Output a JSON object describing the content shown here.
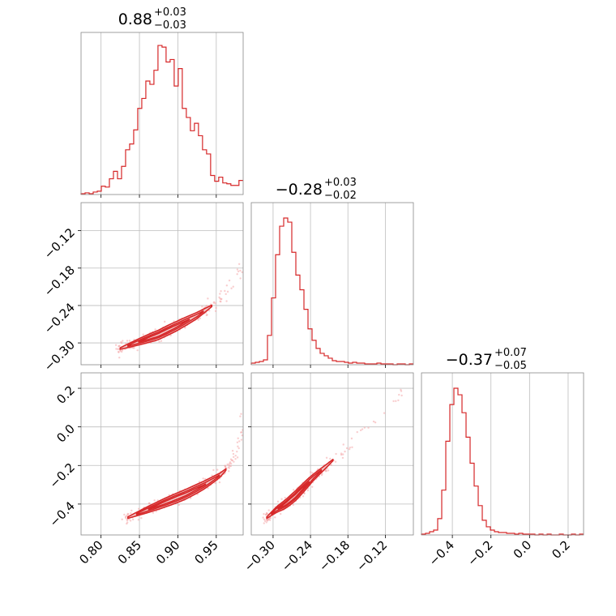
{
  "colors": {
    "accent": "#d62728",
    "contour_fill": "#f2c7c8",
    "scatter": "#f4a6a8",
    "grid": "#bdbdbd",
    "frame": "#888888"
  },
  "chart_data": {
    "type": "corner",
    "grid": true,
    "params": [
      {
        "median": "0.88",
        "plus": "+0.03",
        "minus": "−0.03",
        "range": [
          0.774,
          0.985
        ],
        "ticks": [
          0.8,
          0.85,
          0.9,
          0.95
        ],
        "tick_labels": [
          "0.80",
          "0.85",
          "0.90",
          "0.95"
        ]
      },
      {
        "median": "−0.28",
        "plus": "+0.03",
        "minus": "−0.02",
        "range": [
          -0.335,
          -0.075
        ],
        "ticks": [
          -0.3,
          -0.24,
          -0.18,
          -0.12
        ],
        "tick_labels": [
          "−0.30",
          "−0.24",
          "−0.18",
          "−0.12"
        ]
      },
      {
        "median": "−0.37",
        "plus": "+0.07",
        "minus": "−0.05",
        "range": [
          -0.56,
          0.28
        ],
        "ticks": [
          -0.4,
          -0.2,
          0.0,
          0.2
        ],
        "tick_labels": [
          "−0.4",
          "−0.2",
          "0.0",
          "0.2"
        ]
      }
    ],
    "histograms": [
      {
        "param": 0,
        "bin_start": 0.774,
        "bin_width": 0.00527,
        "ymax": 182,
        "counts": [
          1,
          2,
          1,
          3,
          4,
          10,
          9,
          19,
          28,
          19,
          34,
          54,
          61,
          78,
          104,
          116,
          137,
          133,
          150,
          180,
          178,
          160,
          163,
          131,
          152,
          104,
          93,
          77,
          86,
          71,
          54,
          49,
          23,
          16,
          21,
          14,
          13,
          11,
          11,
          17
        ]
      },
      {
        "param": 1,
        "bin_start": -0.335,
        "bin_width": 0.0065,
        "ymax": 185,
        "counts": [
          2,
          3,
          4,
          6,
          36,
          82,
          135,
          170,
          180,
          175,
          138,
          110,
          92,
          68,
          44,
          30,
          20,
          14,
          11,
          8,
          5,
          4,
          4,
          3,
          2,
          3,
          2,
          2,
          1,
          1,
          1,
          2,
          1,
          1,
          1,
          0,
          1,
          1,
          0,
          1
        ]
      },
      {
        "param": 2,
        "bin_start": -0.56,
        "bin_width": 0.021,
        "ymax": 185,
        "counts": [
          1,
          2,
          4,
          6,
          20,
          55,
          115,
          160,
          180,
          172,
          150,
          120,
          88,
          60,
          36,
          18,
          10,
          6,
          4,
          3,
          3,
          2,
          2,
          1,
          2,
          1,
          1,
          1,
          0,
          1,
          0,
          1,
          0,
          0,
          1,
          0,
          0,
          1,
          0,
          1
        ]
      }
    ],
    "pairs": [
      {
        "x_param": 0,
        "y_param": 1,
        "trend": [
          [
            0.825,
            -0.309
          ],
          [
            0.85,
            -0.298
          ],
          [
            0.875,
            -0.287
          ],
          [
            0.9,
            -0.272
          ],
          [
            0.925,
            -0.256
          ],
          [
            0.945,
            -0.24
          ],
          [
            0.96,
            -0.225
          ],
          [
            0.975,
            -0.2
          ],
          [
            0.985,
            -0.17
          ]
        ]
      },
      {
        "x_param": 0,
        "y_param": 2,
        "trend": [
          [
            0.835,
            -0.47
          ],
          [
            0.86,
            -0.43
          ],
          [
            0.885,
            -0.39
          ],
          [
            0.91,
            -0.35
          ],
          [
            0.935,
            -0.3
          ],
          [
            0.955,
            -0.25
          ],
          [
            0.968,
            -0.2
          ],
          [
            0.978,
            -0.12
          ],
          [
            0.985,
            0.0
          ],
          [
            0.985,
            0.1
          ]
        ]
      },
      {
        "x_param": 1,
        "y_param": 2,
        "trend": [
          [
            -0.31,
            -0.47
          ],
          [
            -0.295,
            -0.43
          ],
          [
            -0.28,
            -0.4
          ],
          [
            -0.265,
            -0.36
          ],
          [
            -0.25,
            -0.31
          ],
          [
            -0.235,
            -0.26
          ],
          [
            -0.21,
            -0.19
          ],
          [
            -0.18,
            -0.1
          ],
          [
            -0.14,
            0.02
          ],
          [
            -0.1,
            0.15
          ],
          [
            -0.08,
            0.25
          ]
        ]
      }
    ]
  }
}
